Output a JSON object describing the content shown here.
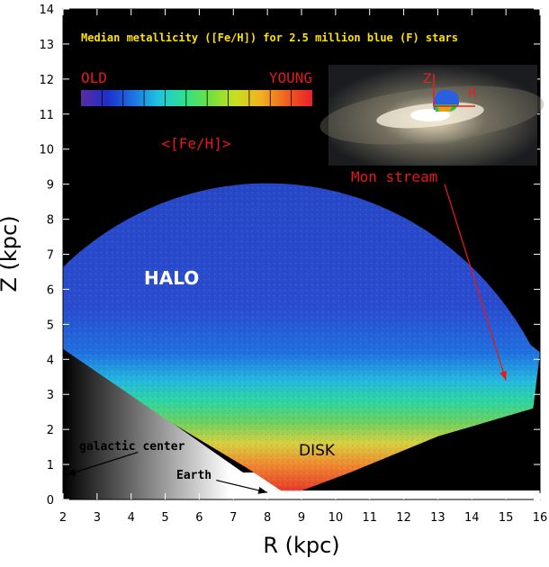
{
  "chart_data": {
    "type": "heatmap",
    "title": "Median metallicity ([Fe/H]) for 2.5 million blue (F) stars",
    "xlabel": "R (kpc)",
    "ylabel": "Z (kpc)",
    "xlim": [
      2,
      16
    ],
    "ylim": [
      0,
      14
    ],
    "x_ticks": [
      "2",
      "3",
      "4",
      "5",
      "6",
      "7",
      "8",
      "9",
      "10",
      "11",
      "12",
      "13",
      "14",
      "15",
      "16"
    ],
    "y_ticks": [
      "0",
      "1",
      "2",
      "3",
      "4",
      "5",
      "6",
      "7",
      "8",
      "9",
      "10",
      "11",
      "12",
      "13",
      "14"
    ],
    "colorbar": {
      "left_label": "OLD",
      "right_label": "YOUNG",
      "quantity_label": "<[Fe/H]>",
      "colors": [
        "#5a2ca0",
        "#1d2fc8",
        "#1f6fe0",
        "#1ec4e0",
        "#2ee090",
        "#6fe040",
        "#c8e020",
        "#f0b020",
        "#f06020",
        "#e8202a"
      ]
    },
    "color_gradient_by_Z": [
      {
        "Z": 0.3,
        "color": "#e8402a"
      },
      {
        "Z": 1.0,
        "color": "#f08a30"
      },
      {
        "Z": 1.6,
        "color": "#d8d040"
      },
      {
        "Z": 2.2,
        "color": "#6ed060"
      },
      {
        "Z": 2.8,
        "color": "#2ed6a0"
      },
      {
        "Z": 3.4,
        "color": "#24b8e0"
      },
      {
        "Z": 4.2,
        "color": "#2070e0"
      },
      {
        "Z": 5.5,
        "color": "#2a4cd0"
      },
      {
        "Z": 9.0,
        "color": "#2648c8"
      }
    ],
    "region_labels": {
      "halo": "HALO",
      "disk": "DISK",
      "mon_stream": "Mon stream",
      "galactic_center": "galactic center",
      "earth": "Earth"
    },
    "inset_labels": {
      "z": "Z",
      "r": "R"
    },
    "annotation_points": {
      "mon_stream_arrow_from": [
        13.2,
        9.0
      ],
      "mon_stream_arrow_to": [
        15.0,
        3.4
      ],
      "earth_arrow_to": [
        8.0,
        0.2
      ],
      "galactic_center_arrow_to": [
        2.1,
        0.7
      ]
    },
    "grid": false
  }
}
